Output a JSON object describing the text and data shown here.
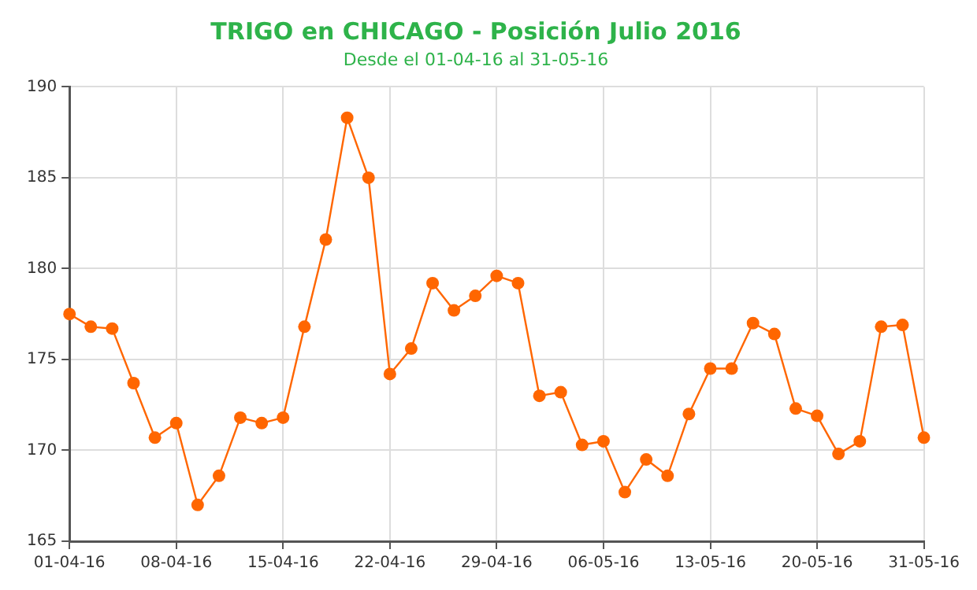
{
  "chart_data": {
    "type": "line",
    "title": "TRIGO en CHICAGO - Posición Julio 2016",
    "subtitle": "Desde el 01-04-16 al 31-05-16",
    "categories": [
      "01-04-16",
      null,
      null,
      null,
      null,
      "08-04-16",
      null,
      null,
      null,
      null,
      "15-04-16",
      null,
      null,
      null,
      null,
      "22-04-16",
      null,
      null,
      null,
      null,
      "29-04-16",
      null,
      null,
      null,
      null,
      "06-05-16",
      null,
      null,
      null,
      null,
      "13-05-16",
      null,
      null,
      null,
      null,
      "20-05-16",
      null,
      null,
      null,
      null,
      "31-05-16"
    ],
    "series": [
      {
        "color": "#ff6600",
        "values": [
          177.5,
          176.8,
          176.7,
          173.7,
          170.7,
          171.5,
          167.0,
          168.6,
          171.8,
          171.5,
          171.8,
          176.8,
          181.6,
          188.3,
          185.0,
          174.2,
          175.6,
          179.2,
          177.7,
          178.5,
          179.6,
          179.2,
          173.0,
          173.2,
          170.3,
          170.5,
          167.7,
          169.5,
          168.6,
          172.0,
          174.5,
          174.5,
          177.0,
          176.4,
          172.3,
          171.9,
          169.8,
          170.5,
          176.8,
          176.9,
          170.7
        ]
      }
    ],
    "ylim": [
      165,
      190
    ],
    "yticks": [
      165,
      170,
      175,
      180,
      185,
      190
    ],
    "grid": true,
    "legend": false,
    "marker": "circle",
    "line_style": "solid"
  }
}
